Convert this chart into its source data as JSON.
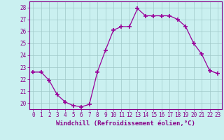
{
  "x": [
    0,
    1,
    2,
    3,
    4,
    5,
    6,
    7,
    8,
    9,
    10,
    11,
    12,
    13,
    14,
    15,
    16,
    17,
    18,
    19,
    20,
    21,
    22,
    23
  ],
  "y": [
    22.6,
    22.6,
    21.9,
    20.7,
    20.1,
    19.8,
    19.7,
    19.9,
    22.6,
    24.4,
    26.1,
    26.4,
    26.4,
    27.9,
    27.3,
    27.3,
    27.3,
    27.3,
    27.0,
    26.4,
    25.0,
    24.1,
    22.7,
    22.5
  ],
  "line_color": "#990099",
  "marker": "+",
  "marker_size": 4,
  "marker_lw": 1.2,
  "xlabel": "Windchill (Refroidissement éolien,°C)",
  "xlabel_fontsize": 6.5,
  "ylim": [
    19.5,
    28.5
  ],
  "yticks": [
    20,
    21,
    22,
    23,
    24,
    25,
    26,
    27,
    28
  ],
  "xlim": [
    -0.5,
    23.5
  ],
  "xticks": [
    0,
    1,
    2,
    3,
    4,
    5,
    6,
    7,
    8,
    9,
    10,
    11,
    12,
    13,
    14,
    15,
    16,
    17,
    18,
    19,
    20,
    21,
    22,
    23
  ],
  "tick_fontsize": 5.5,
  "bg_color": "#caf0f0",
  "grid_color": "#a0c8c8",
  "spine_color": "#880088",
  "tick_color": "#880088",
  "label_color": "#880088",
  "line_width": 0.9
}
